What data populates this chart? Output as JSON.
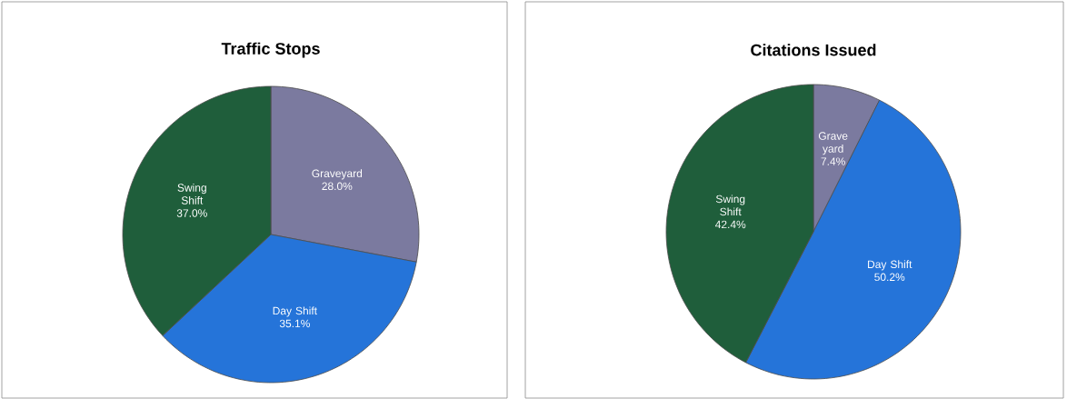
{
  "chart_data": [
    {
      "type": "pie",
      "title": "Traffic Stops",
      "categories": [
        "Graveyard",
        "Day Shift",
        "Swing Shift"
      ],
      "values": [
        28.0,
        35.1,
        37.0
      ],
      "value_labels": [
        "28.0%",
        "35.1%",
        "37.0%"
      ],
      "colors": [
        "#7b7a9f",
        "#2574d9",
        "#1f5e3b"
      ]
    },
    {
      "type": "pie",
      "title": "Citations Issued",
      "categories": [
        "Grave yard",
        "Day Shift",
        "Swing Shift"
      ],
      "values": [
        7.4,
        50.2,
        42.4
      ],
      "value_labels": [
        "7.4%",
        "50.2%",
        "42.4%"
      ],
      "colors": [
        "#7b7a9f",
        "#2574d9",
        "#1f5e3b"
      ]
    }
  ]
}
